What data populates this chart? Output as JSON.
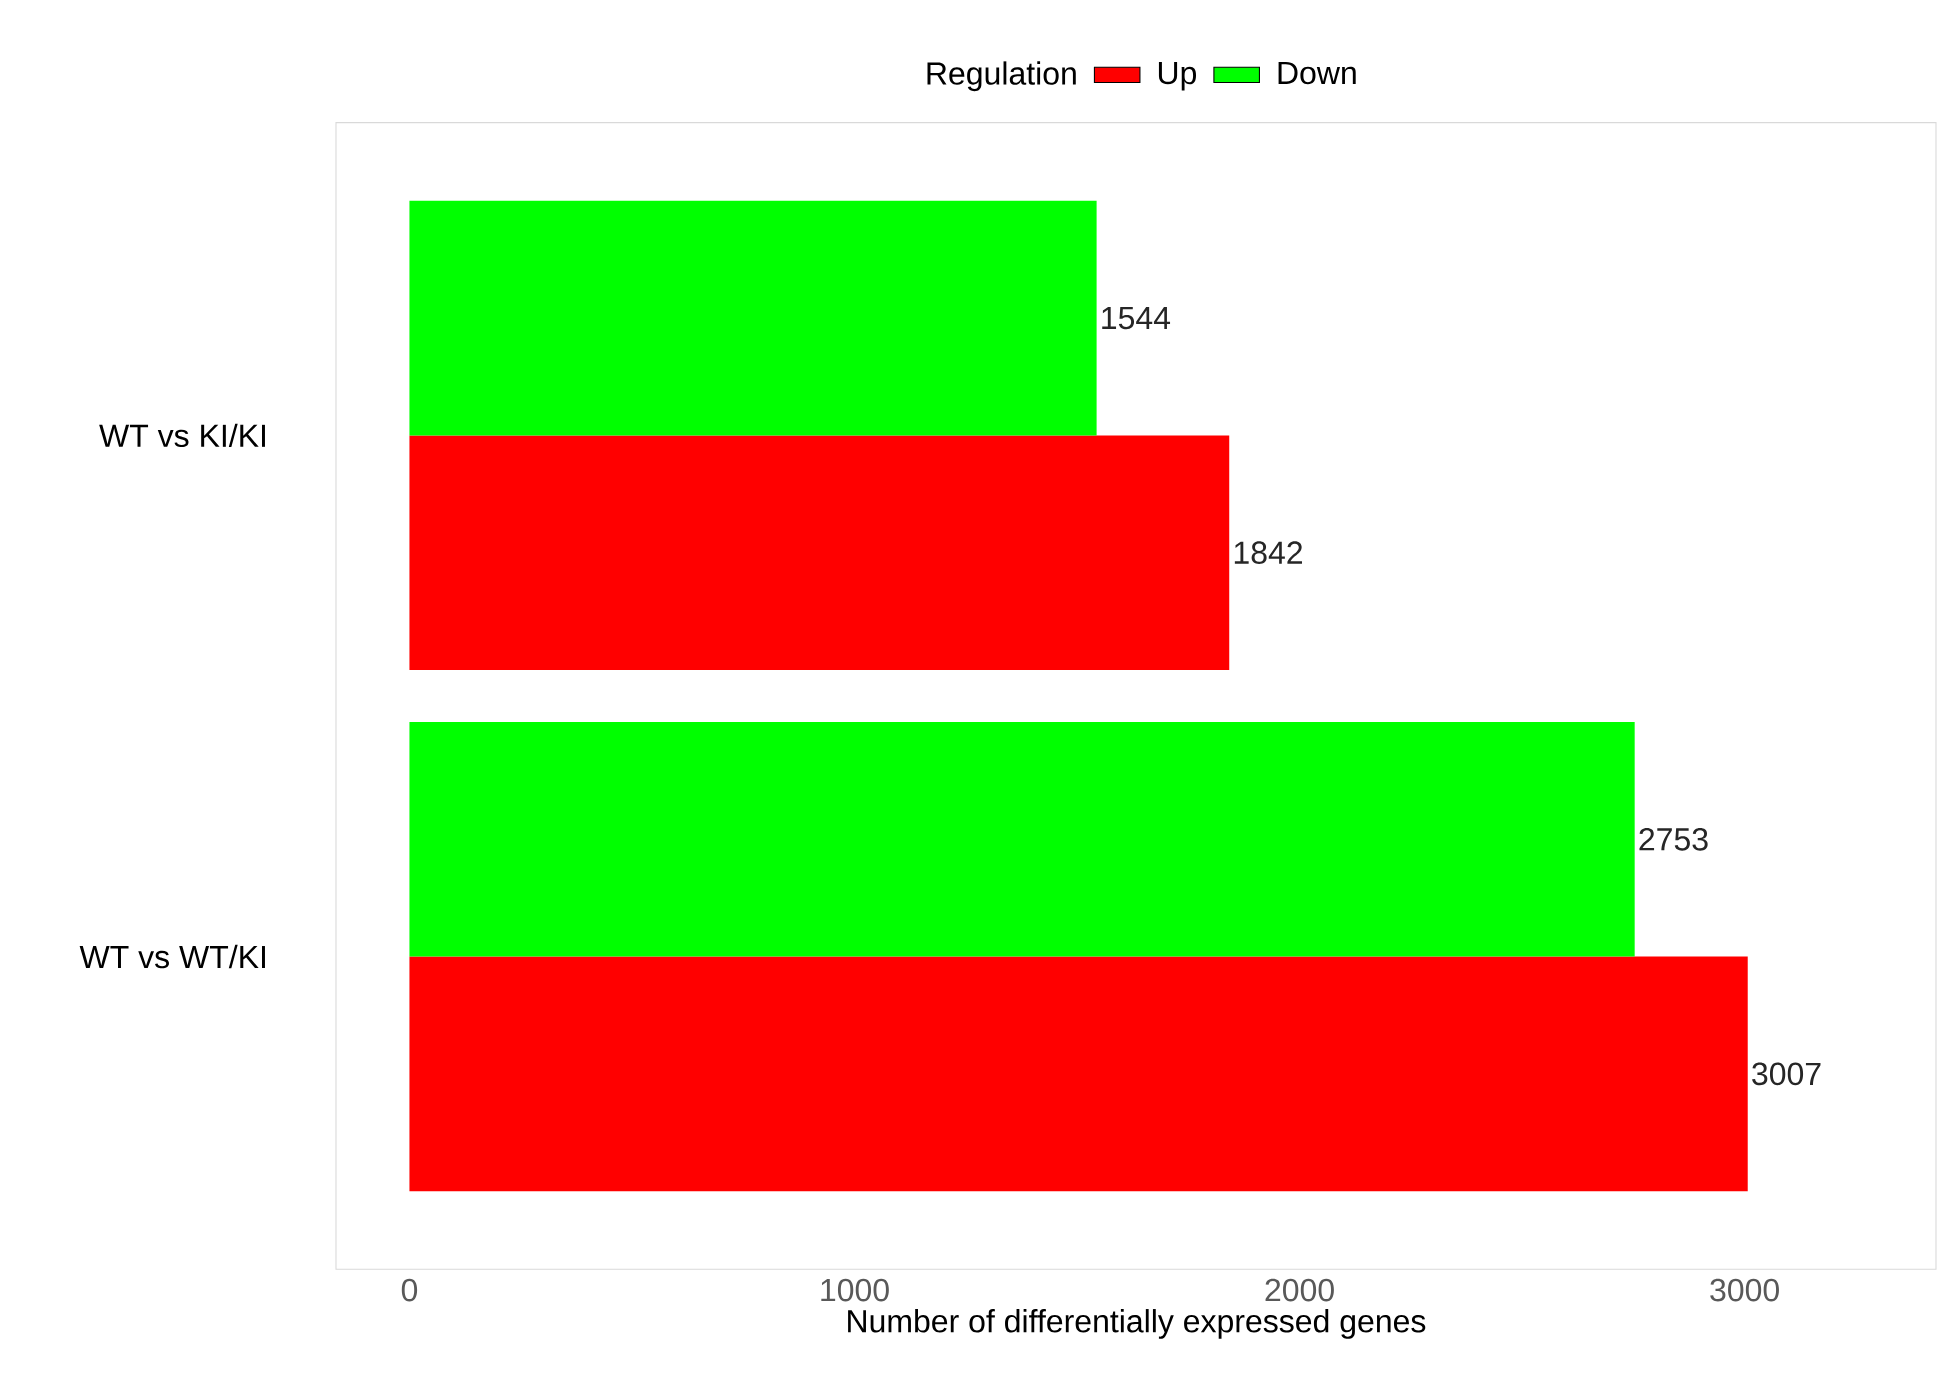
{
  "chart_data": {
    "type": "bar",
    "orientation": "horizontal",
    "xlabel": "Number of differentially expressed genes",
    "legend_title": "Regulation",
    "legend": "top",
    "categories": [
      "WT vs KI/KI",
      "WT vs WT/KI"
    ],
    "series": [
      {
        "name": "Up",
        "color": "#ff0000",
        "values": [
          1842,
          3007
        ]
      },
      {
        "name": "Down",
        "color": "#00ff00",
        "values": [
          1544,
          2753
        ]
      }
    ],
    "xlim": [
      -165,
      3430
    ],
    "xticks": [
      0,
      1000,
      2000,
      3000
    ],
    "grid": false,
    "data_labels": true
  }
}
